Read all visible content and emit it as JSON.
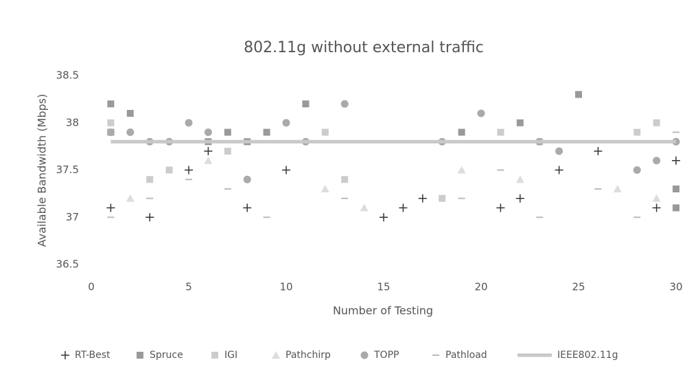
{
  "chart_data": {
    "type": "scatter",
    "title": "802.11g without external traffic",
    "x_label": "Number of Testing",
    "y_label": "Available Bandwidth (Mbps)",
    "xlim": [
      0,
      30
    ],
    "xticks": [
      0,
      5,
      10,
      15,
      20,
      25,
      30
    ],
    "ylim": [
      36.5,
      38.5
    ],
    "yticks": [
      36.5,
      37,
      37.5,
      38,
      38.5
    ],
    "grid": false,
    "legend": "bottom",
    "series": [
      {
        "name": "RT-Best",
        "color": "#333333",
        "marker": "plus",
        "x": [
          1,
          3,
          5,
          6,
          8,
          10,
          15,
          16,
          17,
          21,
          22,
          24,
          26,
          29,
          30
        ],
        "values": [
          37.1,
          37.0,
          37.5,
          37.7,
          37.1,
          37.5,
          37.0,
          37.1,
          37.2,
          37.1,
          37.2,
          37.5,
          37.7,
          37.1,
          37.6
        ]
      },
      {
        "name": "Spruce",
        "color": "#999999",
        "marker": "square",
        "x": [
          1,
          1,
          2,
          6,
          7,
          8,
          9,
          11,
          19,
          22,
          25,
          30,
          30
        ],
        "values": [
          37.9,
          38.2,
          38.1,
          37.8,
          37.9,
          37.8,
          37.9,
          38.2,
          37.9,
          38.0,
          38.3,
          37.3,
          37.1
        ]
      },
      {
        "name": "IGI",
        "color": "#cccccc",
        "marker": "square",
        "x": [
          1,
          3,
          4,
          7,
          12,
          13,
          18,
          21,
          23,
          28,
          29
        ],
        "values": [
          38.0,
          37.4,
          37.5,
          37.7,
          37.9,
          37.4,
          37.2,
          37.9,
          37.8,
          37.9,
          38.0
        ]
      },
      {
        "name": "Pathchirp",
        "color": "#dddddd",
        "marker": "triangle",
        "x": [
          2,
          6,
          12,
          14,
          19,
          22,
          27,
          29
        ],
        "values": [
          37.2,
          37.6,
          37.3,
          37.1,
          37.5,
          37.4,
          37.3,
          37.2
        ]
      },
      {
        "name": "TOPP",
        "color": "#aaaaaa",
        "marker": "circle",
        "x": [
          1,
          2,
          3,
          4,
          5,
          6,
          8,
          10,
          11,
          13,
          18,
          20,
          23,
          24,
          28,
          29,
          30
        ],
        "values": [
          37.9,
          37.9,
          37.8,
          37.8,
          38.0,
          37.9,
          37.4,
          38.0,
          37.8,
          38.2,
          37.8,
          38.1,
          37.8,
          37.7,
          37.5,
          37.6,
          37.8
        ]
      },
      {
        "name": "Pathload",
        "color": "#bbbbbb",
        "marker": "dash",
        "x": [
          1,
          3,
          5,
          7,
          9,
          13,
          19,
          21,
          23,
          26,
          28,
          30
        ],
        "values": [
          37.0,
          37.2,
          37.4,
          37.3,
          37.0,
          37.2,
          37.2,
          37.5,
          37.0,
          37.3,
          37.0,
          37.9
        ]
      },
      {
        "name": "IEEE802.11g",
        "color": "#c8c8c8",
        "marker": "line",
        "x": [
          1,
          30
        ],
        "values": [
          37.8,
          37.8
        ]
      }
    ]
  }
}
